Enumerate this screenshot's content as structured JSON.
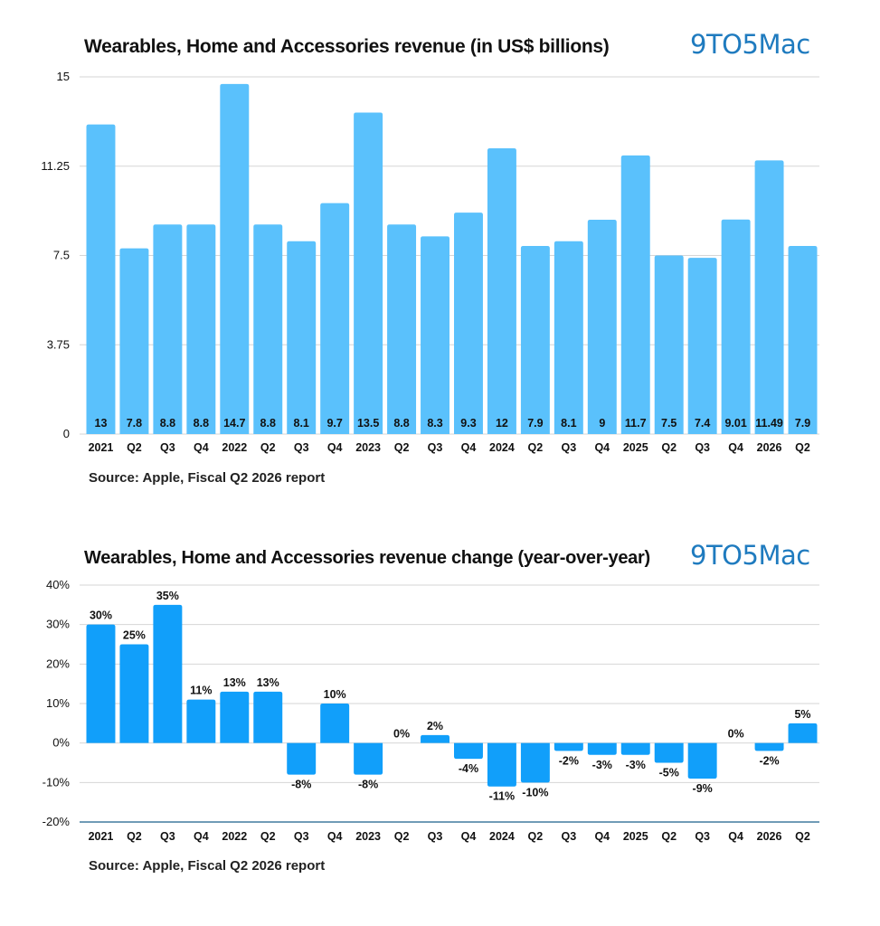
{
  "brand": {
    "logo_text": "9TO5Mac",
    "logo_color": "#1f7bbf"
  },
  "colors": {
    "bar": "#5ac1fc",
    "bar_change": "#119ffa",
    "grid": "#d6d6d6",
    "axis": "#1a5f8a"
  },
  "chart_data": [
    {
      "type": "bar",
      "title": "Wearables, Home and Accessories revenue (in US$ billions)",
      "source": "Source: Apple, Fiscal Q2 2026 report",
      "categories": [
        "2021",
        "Q2",
        "Q3",
        "Q4",
        "2022",
        "Q2",
        "Q3",
        "Q4",
        "2023",
        "Q2",
        "Q3",
        "Q4",
        "2024",
        "Q2",
        "Q3",
        "Q4",
        "2025",
        "Q2",
        "Q3",
        "Q4",
        "2026",
        "Q2"
      ],
      "values": [
        13,
        7.8,
        8.8,
        8.8,
        14.7,
        8.8,
        8.1,
        9.7,
        13.5,
        8.8,
        8.3,
        9.3,
        12,
        7.9,
        8.1,
        9,
        11.7,
        7.5,
        7.4,
        9.01,
        11.49,
        7.9
      ],
      "data_labels": [
        "13",
        "7.8",
        "8.8",
        "8.8",
        "14.7",
        "8.8",
        "8.1",
        "9.7",
        "13.5",
        "8.8",
        "8.3",
        "9.3",
        "12",
        "7.9",
        "8.1",
        "9",
        "11.7",
        "7.5",
        "7.4",
        "9.01",
        "11.49",
        "7.9"
      ],
      "yticks": [
        "15",
        "11.25",
        "7.5",
        "3.75",
        "0"
      ],
      "ytick_values": [
        15,
        11.25,
        7.5,
        3.75,
        0
      ],
      "ylim": [
        0,
        15
      ],
      "grid": true
    },
    {
      "type": "bar",
      "title": "Wearables, Home and Accessories revenue change (year-over-year)",
      "source": "Source: Apple, Fiscal Q2 2026 report",
      "categories": [
        "2021",
        "Q2",
        "Q3",
        "Q4",
        "2022",
        "Q2",
        "Q3",
        "Q4",
        "2023",
        "Q2",
        "Q3",
        "Q4",
        "2024",
        "Q2",
        "Q3",
        "Q4",
        "2025",
        "Q2",
        "Q3",
        "Q4",
        "2026",
        "Q2"
      ],
      "values": [
        30,
        25,
        35,
        11,
        13,
        13,
        -8,
        10,
        -8,
        0,
        2,
        -4,
        -11,
        -10,
        -2,
        -3,
        -3,
        -5,
        -9,
        0,
        -2,
        5
      ],
      "data_labels": [
        "30%",
        "25%",
        "35%",
        "11%",
        "13%",
        "13%",
        "-8%",
        "10%",
        "-8%",
        "0%",
        "2%",
        "-4%",
        "-11%",
        "-10%",
        "-2%",
        "-3%",
        "-3%",
        "-5%",
        "-9%",
        "0%",
        "-2%",
        "5%"
      ],
      "yticks": [
        "40%",
        "30%",
        "20%",
        "10%",
        "0%",
        "-10%",
        "-20%"
      ],
      "ytick_values": [
        40,
        30,
        20,
        10,
        0,
        -10,
        -20
      ],
      "ylim": [
        -20,
        40
      ],
      "grid": true
    }
  ]
}
